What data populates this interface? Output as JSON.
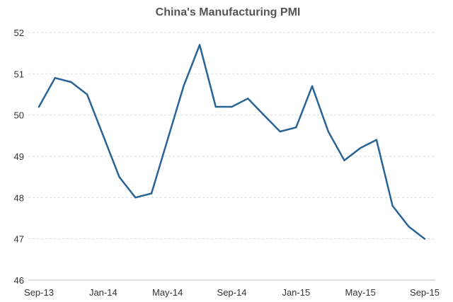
{
  "chart_data": {
    "type": "line",
    "title": "China's Manufacturing PMI",
    "xlabel": "",
    "ylabel": "",
    "ylim": [
      46,
      52
    ],
    "yticks": [
      "46",
      "47",
      "48",
      "49",
      "50",
      "51",
      "52"
    ],
    "x": [
      "Sep-13",
      "Oct-13",
      "Nov-13",
      "Dec-13",
      "Jan-14",
      "Feb-14",
      "Mar-14",
      "Apr-14",
      "May-14",
      "Jun-14",
      "Jul-14",
      "Aug-14",
      "Sep-14",
      "Oct-14",
      "Nov-14",
      "Dec-14",
      "Jan-15",
      "Feb-15",
      "Mar-15",
      "Apr-15",
      "May-15",
      "Jun-15",
      "Jul-15",
      "Aug-15",
      "Sep-15"
    ],
    "xtick_labels": [
      "Sep-13",
      "Jan-14",
      "May-14",
      "Sep-14",
      "Jan-15",
      "May-15",
      "Sep-15"
    ],
    "series": [
      {
        "color": "#2a6496",
        "values": [
          50.2,
          50.9,
          50.8,
          50.5,
          49.5,
          48.5,
          48.0,
          48.1,
          49.4,
          50.7,
          51.7,
          50.2,
          50.2,
          50.4,
          50.0,
          49.6,
          49.7,
          50.7,
          49.6,
          48.9,
          49.2,
          49.4,
          47.8,
          47.3,
          47.0
        ]
      }
    ],
    "grid": true,
    "legend": "none"
  }
}
